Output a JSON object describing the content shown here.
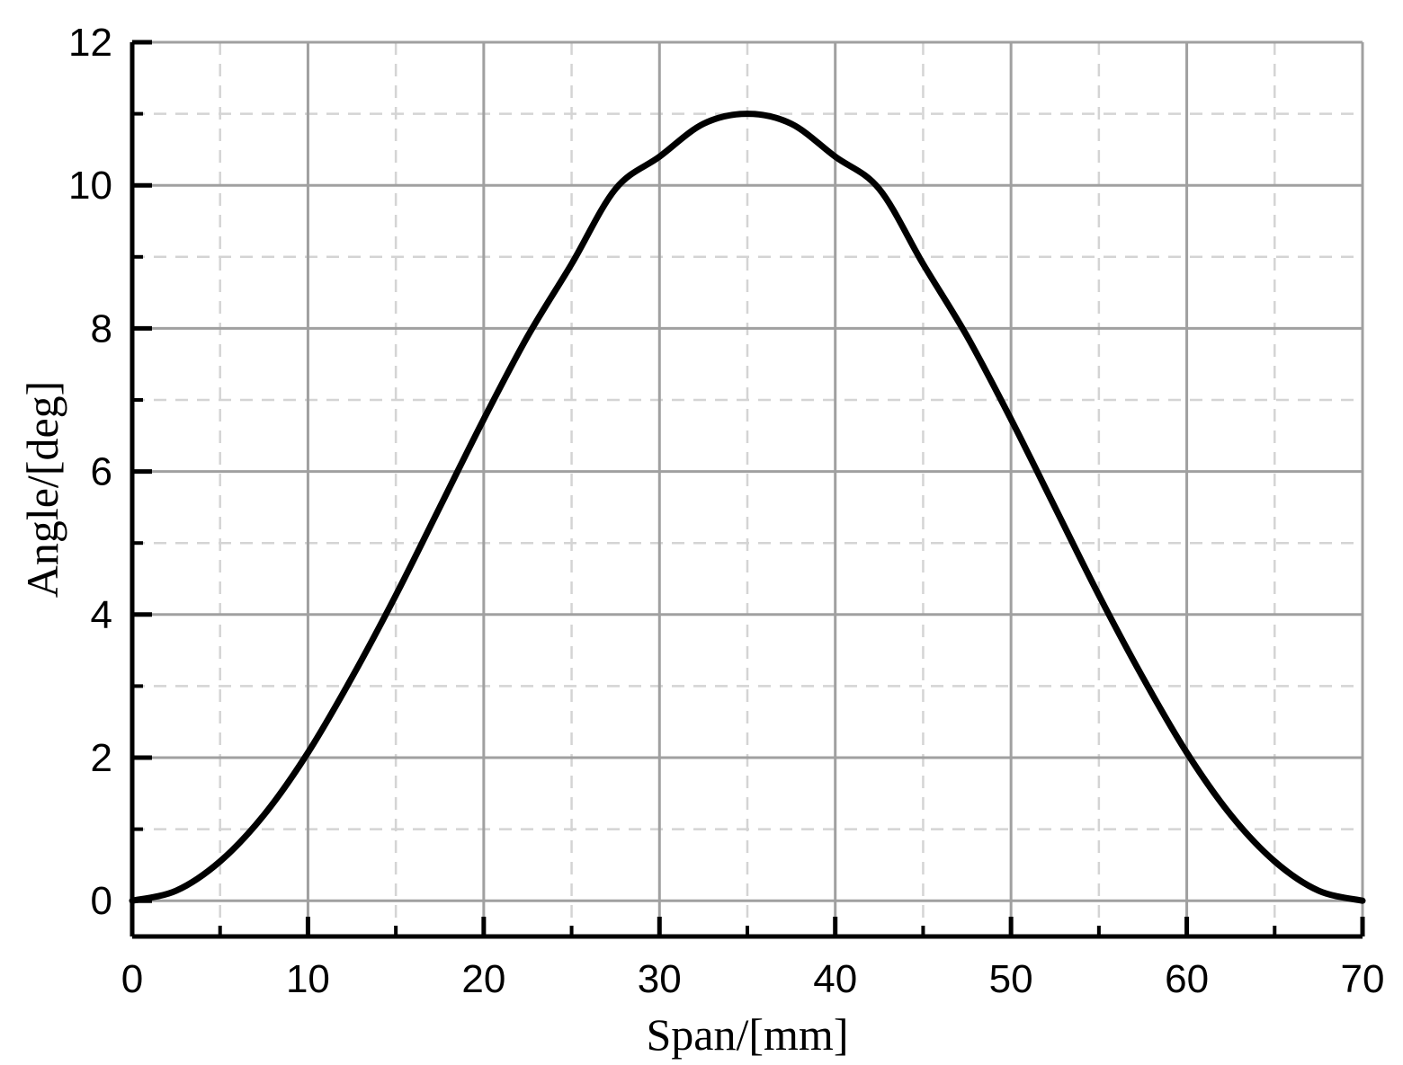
{
  "chart_data": {
    "type": "line",
    "title": "",
    "xlabel": "Span/[mm]",
    "ylabel": "Angle/[deg]",
    "xlim": [
      0,
      70
    ],
    "ylim": [
      -0.5,
      12
    ],
    "x_ticks": [
      "0",
      "10",
      "20",
      "30",
      "40",
      "50",
      "60",
      "70"
    ],
    "y_ticks": [
      "0",
      "2",
      "4",
      "6",
      "8",
      "10",
      "12"
    ],
    "x_tick_values": [
      0,
      10,
      20,
      30,
      40,
      50,
      60,
      70
    ],
    "y_tick_values": [
      0,
      2,
      4,
      6,
      8,
      10,
      12
    ],
    "x_minor_values": [
      5,
      15,
      25,
      35,
      45,
      55,
      65
    ],
    "y_minor_values": [
      1,
      3,
      5,
      7,
      9,
      11
    ],
    "grid": true,
    "legend": "none",
    "colors": {
      "line": "#000000",
      "major_grid": "#a0a0a0",
      "minor_grid": "#d4d4d4",
      "axis": "#000000"
    },
    "series": [
      {
        "x": [
          0,
          2.5,
          5,
          7.5,
          10,
          12.5,
          15,
          17.5,
          20,
          22.5,
          25,
          27.5,
          30,
          32.5,
          35,
          37.5,
          40,
          42.5,
          45,
          47.5,
          50,
          52.5,
          55,
          57.5,
          60,
          62.5,
          65,
          67.5,
          70
        ],
        "y": [
          0,
          0.14,
          0.55,
          1.2,
          2.07,
          3.12,
          4.27,
          5.5,
          6.73,
          7.89,
          8.9,
          9.95,
          10.4,
          10.86,
          11.0,
          10.86,
          10.4,
          9.95,
          8.9,
          7.89,
          6.73,
          5.5,
          4.27,
          3.12,
          2.07,
          1.2,
          0.55,
          0.14,
          0
        ]
      }
    ]
  }
}
